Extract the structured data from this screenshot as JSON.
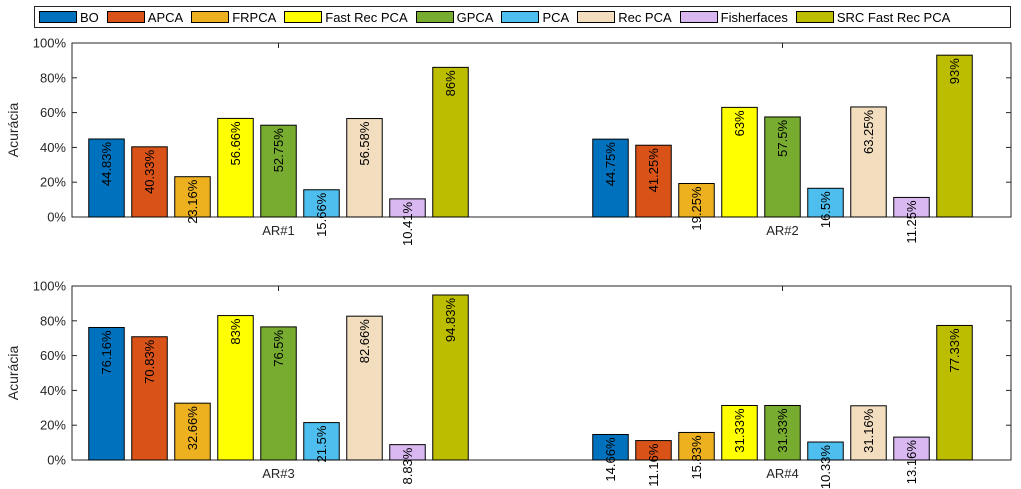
{
  "chart_data": {
    "type": "bar",
    "legend_placement": "top",
    "series_names": [
      "BO",
      "APCA",
      "FRPCA",
      "Fast Rec PCA",
      "GPCA",
      "PCA",
      "Rec PCA",
      "Fisherfaces",
      "SRC Fast Rec PCA"
    ],
    "series_colors": [
      "#0072BD",
      "#D95319",
      "#EDB120",
      "#FFFF00",
      "#77AC30",
      "#4DBEEE",
      "#F2DEBF",
      "#D9B8F2",
      "#BDBD00"
    ],
    "ylabel": "Acurácia",
    "ylim": [
      0,
      100
    ],
    "yticks": [
      "0%",
      "20%",
      "40%",
      "60%",
      "80%",
      "100%"
    ],
    "panels": [
      {
        "categories": [
          "AR#1",
          "AR#2"
        ],
        "values": [
          [
            44.83,
            40.33,
            23.16,
            56.66,
            52.75,
            15.66,
            56.58,
            10.41,
            86
          ],
          [
            44.75,
            41.25,
            19.25,
            63,
            57.5,
            16.5,
            63.25,
            11.25,
            93
          ]
        ],
        "value_labels": [
          [
            "44.83%",
            "40.33%",
            "23.16%",
            "56.66%",
            "52.75%",
            "15.66%",
            "56.58%",
            "10.41%",
            "86%"
          ],
          [
            "44.75%",
            "41.25%",
            "19.25%",
            "63%",
            "57.5%",
            "16.5%",
            "63.25%",
            "11.25%",
            "93%"
          ]
        ]
      },
      {
        "categories": [
          "AR#3",
          "AR#4"
        ],
        "values": [
          [
            76.16,
            70.83,
            32.66,
            83,
            76.5,
            21.5,
            82.66,
            8.83,
            94.83
          ],
          [
            14.66,
            11.16,
            15.83,
            31.33,
            31.33,
            10.33,
            31.16,
            13.16,
            77.33
          ]
        ],
        "value_labels": [
          [
            "76.16%",
            "70.83%",
            "32.66%",
            "83%",
            "76.5%",
            "21.5%",
            "82.66%",
            "8.83%",
            "94.83%"
          ],
          [
            "14.66%",
            "11.16%",
            "15.83%",
            "31.33%",
            "31.33%",
            "10.33%",
            "31.16%",
            "13.16%",
            "77.33%"
          ]
        ]
      }
    ]
  }
}
